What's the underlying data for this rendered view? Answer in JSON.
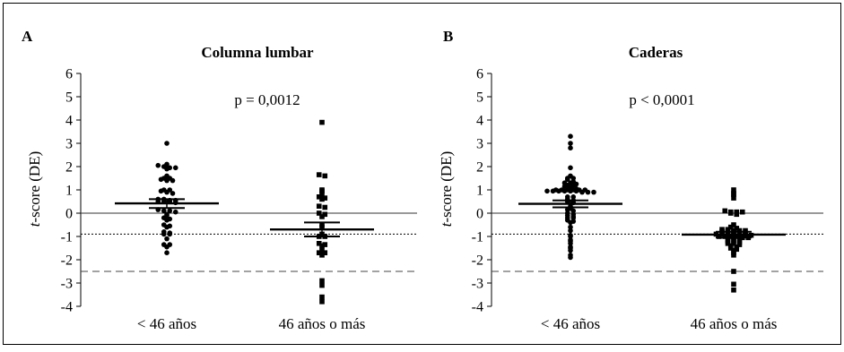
{
  "chart_data": [
    {
      "type": "scatter",
      "panel_label": "A",
      "title": "Columna lumbar",
      "ylabel_italic": "t",
      "ylabel_rest": "-score (DE)",
      "ylim": [
        -4,
        6
      ],
      "yticks": [
        6,
        5,
        4,
        3,
        2,
        1,
        0,
        -1,
        -2,
        -3,
        -4
      ],
      "categories": [
        "< 46 años",
        "46 años o más"
      ],
      "annotation": "p = 0,0012",
      "reference_lines": [
        {
          "y": 0,
          "style": "solid"
        },
        {
          "y": -0.9,
          "style": "dotted"
        },
        {
          "y": -2.5,
          "style": "dashed"
        }
      ],
      "series": [
        {
          "marker": "circle",
          "category_index": 0,
          "summary": {
            "mean": 0.42,
            "lower": 0.22,
            "upper": 0.6
          },
          "values": [
            3.0,
            2.1,
            2.05,
            2.0,
            1.95,
            1.95,
            1.9,
            1.6,
            1.5,
            1.5,
            1.45,
            1.4,
            1.4,
            1.0,
            1.0,
            0.95,
            0.9,
            0.85,
            0.6,
            0.6,
            0.55,
            0.55,
            0.5,
            0.5,
            0.5,
            0.45,
            0.15,
            0.1,
            0.1,
            0.05,
            -0.05,
            -0.1,
            -0.2,
            -0.25,
            -0.3,
            -0.5,
            -0.55,
            -0.6,
            -0.8,
            -0.85,
            -0.9,
            -0.9,
            -1.1,
            -1.35,
            -1.35,
            -1.45,
            -1.7
          ]
        },
        {
          "marker": "square",
          "category_index": 1,
          "summary": {
            "mean": -0.7,
            "lower": -1.0,
            "upper": -0.4
          },
          "values": [
            3.9,
            1.65,
            1.6,
            1.0,
            0.95,
            0.8,
            0.7,
            0.65,
            0.6,
            0.3,
            0.25,
            0.0,
            -0.05,
            -0.15,
            -0.5,
            -0.6,
            -0.9,
            -1.0,
            -1.0,
            -1.3,
            -1.35,
            -1.4,
            -1.6,
            -1.7,
            -1.7,
            -1.8,
            -2.9,
            -3.1,
            -3.6,
            -3.8
          ]
        }
      ]
    },
    {
      "type": "scatter",
      "panel_label": "B",
      "title": "Caderas",
      "ylabel_italic": "t",
      "ylabel_rest": "-score (DE)",
      "ylim": [
        -4,
        6
      ],
      "yticks": [
        6,
        5,
        4,
        3,
        2,
        1,
        0,
        -1,
        -2,
        -3,
        -4
      ],
      "categories": [
        "< 46 años",
        "46 años o más"
      ],
      "annotation": "p < 0,0001",
      "reference_lines": [
        {
          "y": 0,
          "style": "solid"
        },
        {
          "y": -0.9,
          "style": "dotted"
        },
        {
          "y": -2.5,
          "style": "dashed"
        }
      ],
      "series": [
        {
          "marker": "circle",
          "category_index": 0,
          "summary": {
            "mean": 0.4,
            "lower": 0.25,
            "upper": 0.55
          },
          "values": [
            3.3,
            3.0,
            2.8,
            1.95,
            1.6,
            1.5,
            1.5,
            1.45,
            1.35,
            1.3,
            1.3,
            1.25,
            1.2,
            1.2,
            1.15,
            1.1,
            1.05,
            1.0,
            1.0,
            1.0,
            1.0,
            1.0,
            1.0,
            0.95,
            0.95,
            0.95,
            0.95,
            0.95,
            0.95,
            0.9,
            0.9,
            0.9,
            0.7,
            0.7,
            0.6,
            0.55,
            0.5,
            0.45,
            0.3,
            0.2,
            0.15,
            0.1,
            0.0,
            -0.05,
            -0.1,
            -0.15,
            -0.2,
            -0.2,
            -0.3,
            -0.35,
            -0.4,
            -0.6,
            -0.75,
            -0.95,
            -1.0,
            -1.15,
            -1.2,
            -1.3,
            -1.45,
            -1.5,
            -1.6,
            -1.8,
            -1.9
          ]
        },
        {
          "marker": "square",
          "category_index": 1,
          "summary": {
            "mean": -0.92,
            "lower": -1.05,
            "upper": -0.8
          },
          "values": [
            1.0,
            0.85,
            0.8,
            0.65,
            0.1,
            0.05,
            0.05,
            0.05,
            0.0,
            -0.05,
            -0.5,
            -0.6,
            -0.65,
            -0.7,
            -0.7,
            -0.75,
            -0.75,
            -0.75,
            -0.8,
            -0.8,
            -0.8,
            -0.85,
            -0.85,
            -0.9,
            -0.9,
            -0.9,
            -0.9,
            -0.95,
            -0.95,
            -0.95,
            -1.0,
            -1.0,
            -1.0,
            -1.0,
            -1.05,
            -1.05,
            -1.1,
            -1.1,
            -1.15,
            -1.2,
            -1.2,
            -1.25,
            -1.3,
            -1.3,
            -1.35,
            -1.4,
            -1.45,
            -1.5,
            -1.55,
            -1.6,
            -1.7,
            -1.8,
            -2.5,
            -3.05,
            -3.3
          ]
        }
      ]
    }
  ]
}
